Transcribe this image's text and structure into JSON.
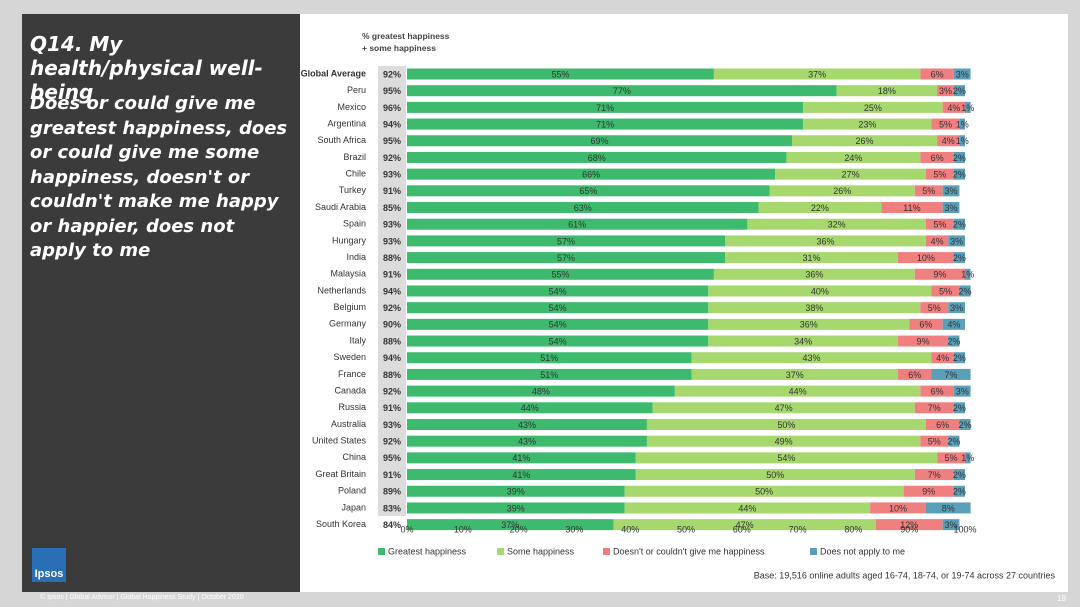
{
  "title": "Q14. My health/physical well-being",
  "subtitle": "Does or could give me greatest happiness, does or could give me some happiness, doesn't or couldn't make me happy or happier, does not apply to me",
  "logo": "Ipsos",
  "footer": "© Ipsos | Global Advisor | Global Happiness Study | October 2020",
  "page_number": "19",
  "chart_data": {
    "type": "stacked-bar",
    "net_header": "% greatest happiness + some happiness",
    "categories": [
      "Global Average",
      "Peru",
      "Mexico",
      "Argentina",
      "South Africa",
      "Brazil",
      "Chile",
      "Turkey",
      "Saudi Arabia",
      "Spain",
      "Hungary",
      "India",
      "Malaysia",
      "Netherlands",
      "Belgium",
      "Germany",
      "Italy",
      "Sweden",
      "France",
      "Canada",
      "Russia",
      "Australia",
      "United States",
      "China",
      "Great Britain",
      "Poland",
      "Japan",
      "South Korea"
    ],
    "net": {
      "values": [
        92,
        95,
        96,
        94,
        95,
        92,
        93,
        91,
        85,
        93,
        93,
        88,
        91,
        94,
        92,
        90,
        88,
        94,
        88,
        92,
        91,
        93,
        92,
        95,
        91,
        89,
        83,
        84
      ],
      "value_labels": [
        "92%",
        "95%",
        "96%",
        "94%",
        "95%",
        "92%",
        "93%",
        "91%",
        "85%",
        "93%",
        "93%",
        "88%",
        "91%",
        "94%",
        "92%",
        "90%",
        "88%",
        "94%",
        "88%",
        "92%",
        "91%",
        "93%",
        "92%",
        "95%",
        "91%",
        "89%",
        "83%",
        "84%"
      ]
    },
    "series": [
      {
        "name": "Greatest happiness",
        "color": "#3dba6e",
        "values": [
          55,
          77,
          71,
          71,
          69,
          68,
          66,
          65,
          63,
          61,
          57,
          57,
          55,
          54,
          54,
          54,
          54,
          51,
          51,
          48,
          44,
          43,
          43,
          41,
          41,
          39,
          39,
          37
        ],
        "value_labels": [
          "55%",
          "77%",
          "71%",
          "71%",
          "69%",
          "68%",
          "66%",
          "65%",
          "63%",
          "61%",
          "57%",
          "57%",
          "55%",
          "54%",
          "54%",
          "54%",
          "54%",
          "51%",
          "51%",
          "48%",
          "44%",
          "43%",
          "43%",
          "41%",
          "41%",
          "39%",
          "39%",
          "37%"
        ]
      },
      {
        "name": "Some happiness",
        "color": "#a6d86e",
        "values": [
          37,
          18,
          25,
          23,
          26,
          24,
          27,
          26,
          22,
          32,
          36,
          31,
          36,
          40,
          38,
          36,
          34,
          43,
          37,
          44,
          47,
          50,
          49,
          54,
          50,
          50,
          44,
          47
        ],
        "value_labels": [
          "37%",
          "18%",
          "25%",
          "23%",
          "26%",
          "24%",
          "27%",
          "26%",
          "22%",
          "32%",
          "36%",
          "31%",
          "36%",
          "40%",
          "38%",
          "36%",
          "34%",
          "43%",
          "37%",
          "44%",
          "47%",
          "50%",
          "49%",
          "54%",
          "50%",
          "50%",
          "44%",
          "47%"
        ]
      },
      {
        "name": "Doesn't or couldn't give me happiness",
        "color": "#f07f80",
        "values": [
          6,
          3,
          4,
          5,
          4,
          6,
          5,
          5,
          11,
          5,
          4,
          10,
          9,
          5,
          5,
          6,
          9,
          4,
          6,
          6,
          7,
          6,
          5,
          5,
          7,
          9,
          10,
          12
        ],
        "value_labels": [
          "6%",
          "3%",
          "4%",
          "5%",
          "4%",
          "6%",
          "5%",
          "5%",
          "11%",
          "5%",
          "4%",
          "10%",
          "9%",
          "5%",
          "5%",
          "6%",
          "9%",
          "4%",
          "6%",
          "6%",
          "7%",
          "6%",
          "5%",
          "5%",
          "7%",
          "9%",
          "10%",
          "12%"
        ]
      },
      {
        "name": "Does not apply to me",
        "color": "#5a9fb8",
        "values": [
          3,
          2,
          1,
          1,
          1,
          2,
          2,
          3,
          3,
          2,
          3,
          2,
          1,
          2,
          3,
          4,
          2,
          2,
          7,
          3,
          2,
          2,
          2,
          1,
          2,
          2,
          8,
          3
        ],
        "value_labels": [
          "3%",
          "2%",
          "1%",
          "1%",
          "1%",
          "2%",
          "2%",
          "3%",
          "3%",
          "2%",
          "3%",
          "2%",
          "1%",
          "2%",
          "3%",
          "4%",
          "2%",
          "2%",
          "7%",
          "3%",
          "2%",
          "2%",
          "2%",
          "1%",
          "2%",
          "2%",
          "8%",
          "3%"
        ]
      }
    ],
    "xlim": [
      0,
      100
    ],
    "xticks": [
      {
        "value": 0,
        "label": "0%"
      },
      {
        "value": 10,
        "label": "10%"
      },
      {
        "value": 20,
        "label": "20%"
      },
      {
        "value": 30,
        "label": "30%"
      },
      {
        "value": 40,
        "label": "40%"
      },
      {
        "value": 50,
        "label": "50%"
      },
      {
        "value": 60,
        "label": "60%"
      },
      {
        "value": 70,
        "label": "70%"
      },
      {
        "value": 80,
        "label": "80%"
      },
      {
        "value": 90,
        "label": "90%"
      },
      {
        "value": 100,
        "label": "100%"
      }
    ],
    "note": "Base: 19,516 online adults aged 16-74, 18-74, or 19-74 across 27 countries"
  }
}
